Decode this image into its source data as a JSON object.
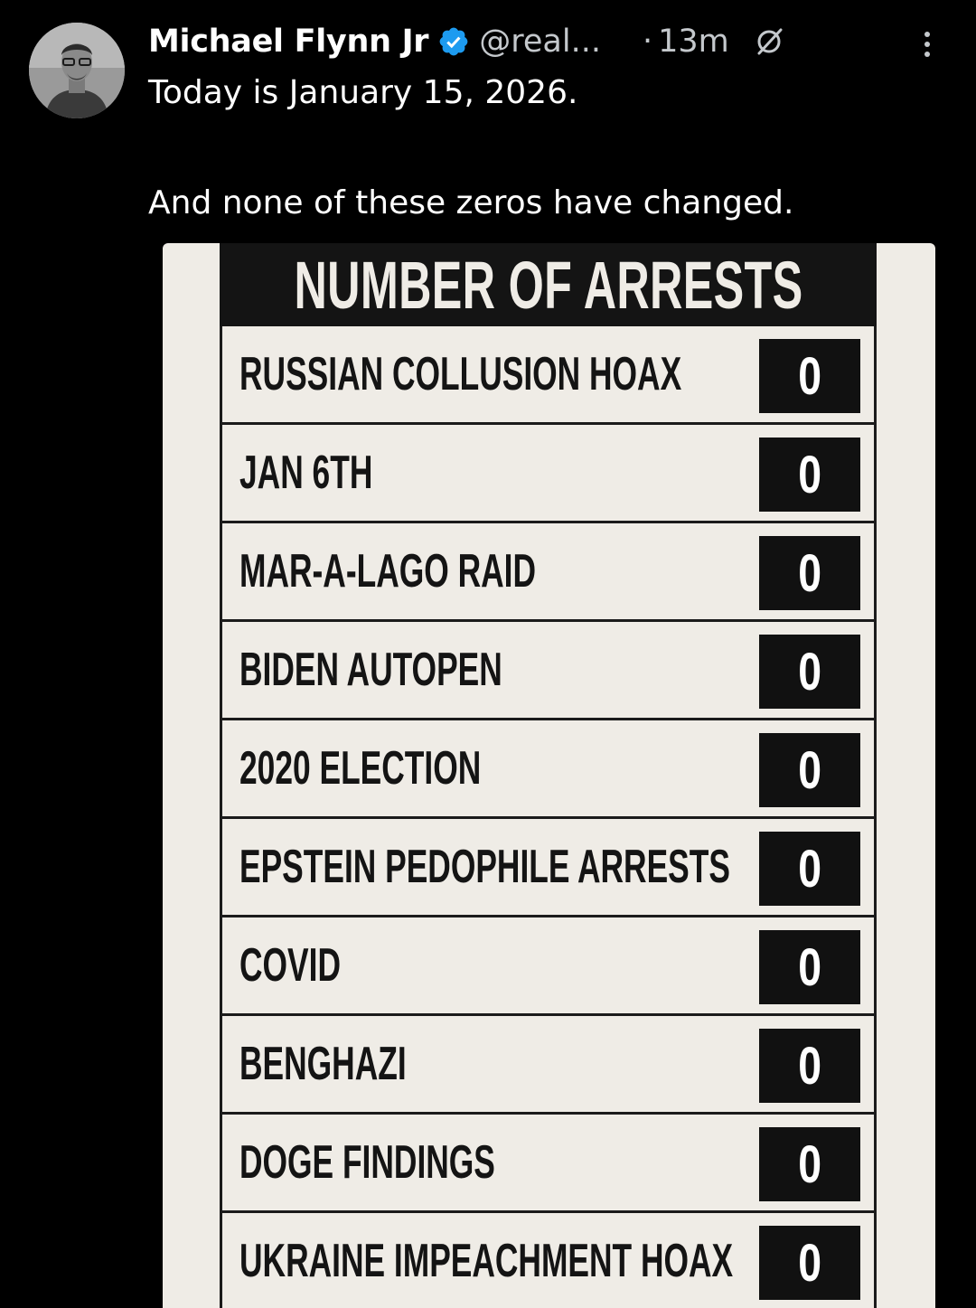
{
  "tweet": {
    "author": {
      "name": "Michael Flynn Jr",
      "handle": "@real...",
      "verified": true
    },
    "separator": "·",
    "time": "13m",
    "text_line1": "Today is January 15, 2026.",
    "text_line2": "And none of these zeros have changed."
  },
  "image": {
    "heading": "NUMBER OF ARRESTS",
    "rows": [
      {
        "label": "RUSSIAN COLLUSION HOAX",
        "count": "0"
      },
      {
        "label": "JAN 6TH",
        "count": "0"
      },
      {
        "label": "MAR-A-LAGO RAID",
        "count": "0"
      },
      {
        "label": "BIDEN AUTOPEN",
        "count": "0"
      },
      {
        "label": "2020 ELECTION",
        "count": "0"
      },
      {
        "label": "EPSTEIN PEDOPHILE ARRESTS",
        "count": "0"
      },
      {
        "label": "COVID",
        "count": "0"
      },
      {
        "label": "BENGHAZI",
        "count": "0"
      },
      {
        "label": "DOGE FINDINGS",
        "count": "0"
      },
      {
        "label": "UKRAINE IMPEACHMENT HOAX",
        "count": "0"
      }
    ]
  },
  "colors": {
    "background": "#000000",
    "verified_badge": "#1d9bf0",
    "secondary_text": "#c4c8cc",
    "card_paper": "#efece6"
  },
  "icons": [
    "avatar",
    "verified-badge-icon",
    "grok-icon",
    "more-options-icon"
  ]
}
